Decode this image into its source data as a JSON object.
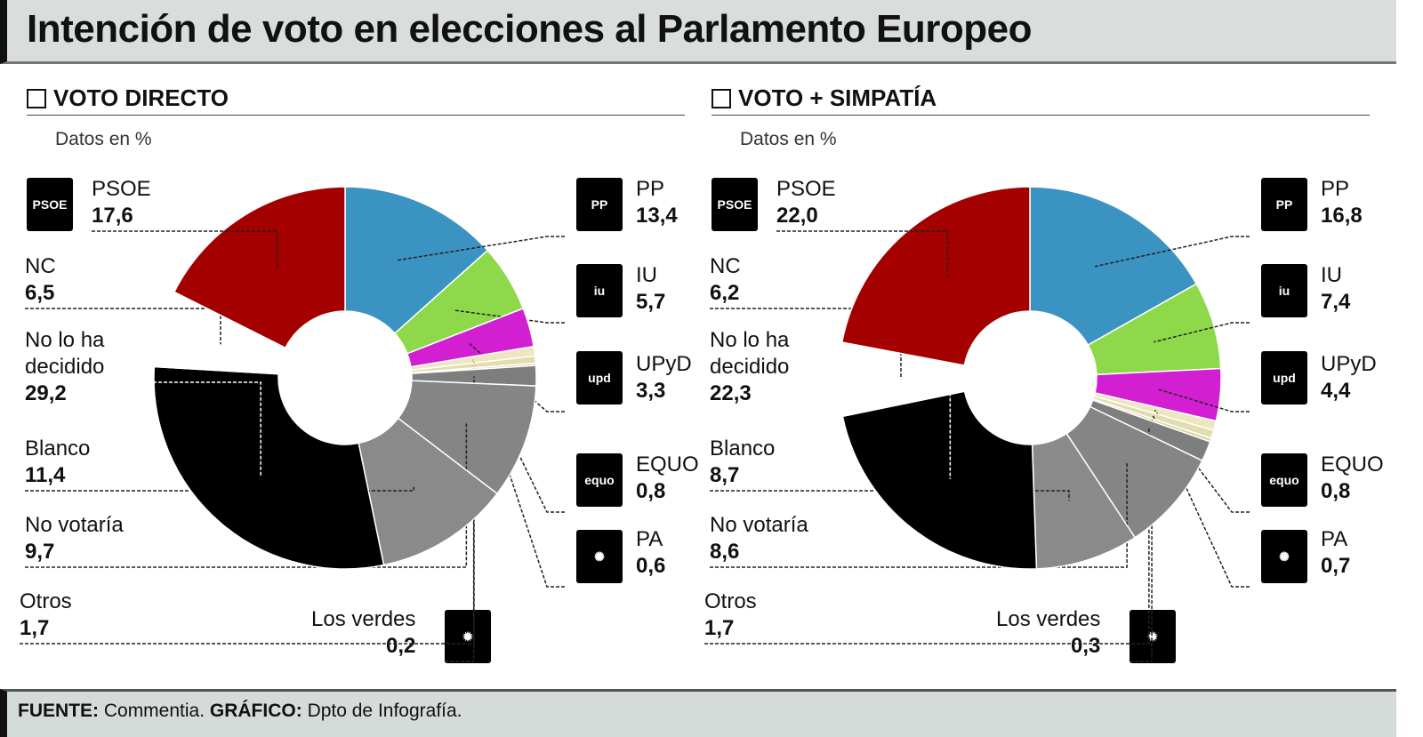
{
  "title": "Intención de voto en elecciones al Parlamento Europeo",
  "footer": {
    "source_label": "FUENTE:",
    "source": "Commentia.",
    "graphic_label": "GRÁFICO:",
    "graphic": "Dpto de Infografía."
  },
  "colors": {
    "PSOE": "#a50000",
    "PP": "#3b93c1",
    "IU": "#8ed94a",
    "UPyD": "#d21fd2",
    "EQUO": "#eee6bf",
    "PA": "#e3dcae",
    "Los verdes": "#d9d2a3",
    "Otros": "#7e7e7e",
    "No votaría": "#858585",
    "Blanco": "#8a8a8a",
    "No lo ha decidido": "#000000",
    "NC": "#ffffff"
  },
  "chart_data": [
    {
      "type": "pie",
      "title": "VOTO DIRECTO",
      "note": "Datos en %",
      "categories": [
        "PP",
        "IU",
        "UPyD",
        "EQUO",
        "PA",
        "Los verdes",
        "Otros",
        "No votaría",
        "Blanco",
        "No lo ha decidido",
        "NC",
        "PSOE"
      ],
      "labels": [
        "PP",
        "IU",
        "UPyD",
        "EQUO",
        "PA",
        "Los verdes",
        "Otros",
        "No votaría",
        "Blanco",
        "No lo ha\ndecidido",
        "NC",
        "PSOE"
      ],
      "values": [
        "13,4",
        "5,7",
        "3,3",
        "0,8",
        "0,6",
        "0,2",
        "1,7",
        "9,7",
        "11,4",
        "29,2",
        "6,5",
        "17,6"
      ]
    },
    {
      "type": "pie",
      "title": "VOTO + SIMPATÍA",
      "note": "Datos en %",
      "categories": [
        "PP",
        "IU",
        "UPyD",
        "EQUO",
        "PA",
        "Los verdes",
        "Otros",
        "No votaría",
        "Blanco",
        "No lo ha decidido",
        "NC",
        "PSOE"
      ],
      "labels": [
        "PP",
        "IU",
        "UPyD",
        "EQUO",
        "PA",
        "Los verdes",
        "Otros",
        "No votaría",
        "Blanco",
        "No lo ha\ndecidido",
        "NC",
        "PSOE"
      ],
      "values": [
        "16,8",
        "7,4",
        "4,4",
        "0,8",
        "0,7",
        "0,3",
        "1,7",
        "8,6",
        "8,7",
        "22,3",
        "6,2",
        "22,0"
      ]
    }
  ],
  "logos": {
    "PSOE": "PSOE",
    "PP": "PP",
    "IU": "iu",
    "UPyD": "upd",
    "EQUO": "equo",
    "PA": "✺",
    "Los verdes": "✹"
  }
}
